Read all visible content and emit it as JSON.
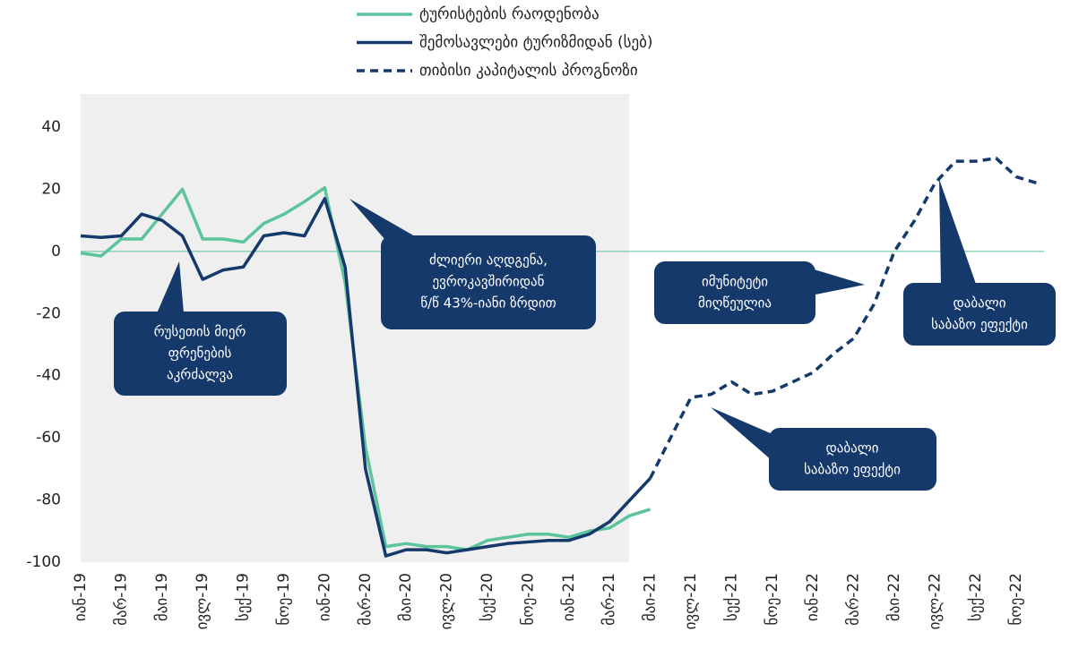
{
  "chart_data": {
    "type": "line",
    "categories": [
      "იან-19",
      null,
      "მარ-19",
      null,
      "მაი-19",
      null,
      "ივლ-19",
      null,
      "სექ-19",
      null,
      "ნოე-19",
      null,
      "იან-20",
      null,
      "მარ-20",
      null,
      "მაი-20",
      null,
      "ივლ-20",
      null,
      "სექ-20",
      null,
      "ნოე-20",
      null,
      "იან-21",
      null,
      "მარ-21",
      null,
      "მაი-21",
      null,
      "ივლ-21",
      null,
      "სექ-21",
      null,
      "ნოე-21",
      null,
      "იან-22",
      null,
      "მარ-22",
      null,
      "მაი-22",
      null,
      "ივლ-22",
      null,
      "სექ-22",
      null,
      "ნოე-22",
      null
    ],
    "series": [
      {
        "name": "ტურისტების რაოდენობა",
        "color": "#5bc49a",
        "style": "solid",
        "values": [
          -0.5,
          -1.5,
          4,
          4,
          12,
          20,
          4,
          4,
          3,
          9,
          12,
          16,
          20.5,
          -10,
          -63,
          -95,
          -94,
          -95,
          -95,
          -96,
          -93,
          -92,
          -91,
          -91,
          -92,
          -90,
          -89,
          -85,
          -83,
          null,
          null,
          null,
          null,
          null,
          null,
          null,
          null,
          null,
          null,
          null,
          null,
          null,
          null,
          null,
          null,
          null,
          null,
          null
        ]
      },
      {
        "name": "შემოსავლები ტურიზმიდან (სებ)",
        "color": "#15396b",
        "style": "solid",
        "values": [
          5,
          4.5,
          5,
          12,
          10,
          5,
          -9,
          -6,
          -5,
          5,
          6,
          5,
          17,
          -5,
          -70,
          -98,
          -96,
          -96,
          -97,
          -96,
          -95,
          -94,
          -93.5,
          -93,
          -93,
          -91,
          -87,
          -80,
          -73,
          null,
          null,
          null,
          null,
          null,
          null,
          null,
          null,
          null,
          null,
          null,
          null,
          null,
          null,
          null,
          null,
          null,
          null,
          null
        ]
      },
      {
        "name": "თიბისი კაპიტალის პროგნოზი",
        "color": "#15396b",
        "style": "dashed",
        "values": [
          null,
          null,
          null,
          null,
          null,
          null,
          null,
          null,
          null,
          null,
          null,
          null,
          null,
          null,
          null,
          null,
          null,
          null,
          null,
          null,
          null,
          null,
          null,
          null,
          null,
          null,
          null,
          null,
          -73,
          -60,
          -47,
          -46,
          -42,
          -46,
          -45,
          -42,
          -39,
          -33,
          -28,
          -17,
          0,
          10,
          22,
          29,
          29,
          30,
          24,
          22
        ]
      }
    ],
    "ylim": [
      -100,
      40
    ],
    "yticks": [
      -100,
      -80,
      -60,
      -40,
      -20,
      0,
      20,
      40
    ],
    "annotations": [
      {
        "lines": [
          "რუსეთის მიერ",
          "ფრენების",
          "აკრძალვა"
        ]
      },
      {
        "lines": [
          "ძლიერი აღდგენა,",
          "ევროკავშირიდან",
          "წ/წ 43%-იანი ზრდით"
        ]
      },
      {
        "lines": [
          "იმუნიტეტი",
          "მიღწეულია"
        ]
      },
      {
        "lines": [
          "დაბალი",
          "საბაზო ეფექტი"
        ]
      },
      {
        "lines": [
          "დაბალი",
          "საბაზო ეფექტი"
        ]
      }
    ]
  }
}
